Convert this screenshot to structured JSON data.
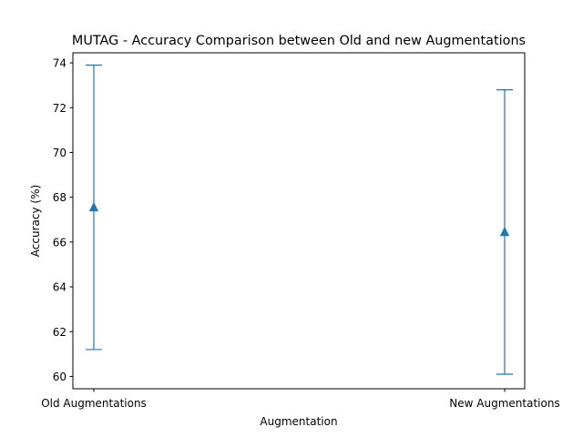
{
  "chart_data": {
    "type": "scatter",
    "title": "MUTAG - Accuracy Comparison between Old and new Augmentations",
    "xlabel": "Augmentation",
    "ylabel": "Accuracy (%)",
    "categories": [
      "Old Augmentations",
      "New Augmentations"
    ],
    "series": [
      {
        "values": [
          67.55,
          66.45
        ],
        "error_low": [
          61.2,
          60.1
        ],
        "error_high": [
          73.9,
          72.8
        ],
        "marker": "triangle-up",
        "color": "#1f77b4"
      }
    ],
    "ylim": [
      59.45,
      74.45
    ],
    "yticks": [
      "60",
      "62",
      "64",
      "66",
      "68",
      "70",
      "72",
      "74"
    ],
    "grid": false
  }
}
